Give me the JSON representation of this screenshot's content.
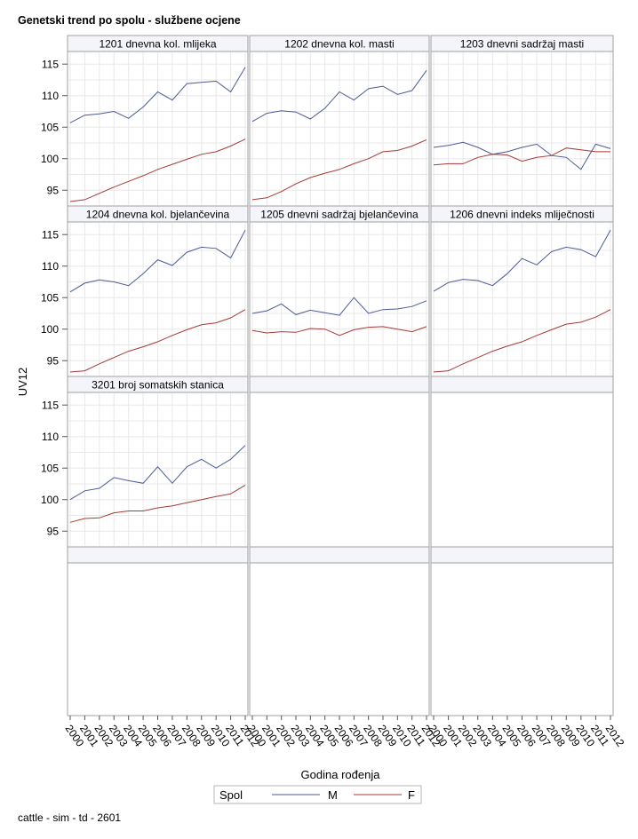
{
  "title": "Genetski trend po spolu - službene ocjene",
  "footnote": "cattle - sim - td - 2601",
  "colors": {
    "M": "#4a5a96",
    "F": "#a83a36",
    "grid": "#e8e8e8",
    "frame": "#a0a0a0",
    "header_bg": "#f4f5fa"
  },
  "chart_data": {
    "type": "line",
    "xlabel": "Godina rođenja",
    "ylabel": "UV12",
    "ylim": [
      92.5,
      117
    ],
    "yticks": [
      95,
      100,
      105,
      110,
      115
    ],
    "x": [
      "2000",
      "2001",
      "2002",
      "2003",
      "2004",
      "2005",
      "2006",
      "2007",
      "2008",
      "2009",
      "2010",
      "2011",
      "2012"
    ],
    "legend": {
      "title": "Spol",
      "position": "bottom-center",
      "entries": [
        "M",
        "F"
      ]
    },
    "grid": true,
    "panels": [
      {
        "title": "1201 dnevna kol. mlijeka",
        "series": [
          {
            "name": "M",
            "values": [
              105.7,
              106.9,
              107.1,
              107.5,
              106.4,
              108.2,
              110.6,
              109.3,
              111.9,
              112.1,
              112.3,
              110.6,
              114.5
            ]
          },
          {
            "name": "F",
            "values": [
              93.2,
              93.5,
              94.5,
              95.5,
              96.4,
              97.3,
              98.3,
              99.1,
              99.9,
              100.7,
              101.1,
              102.0,
              103.1
            ]
          }
        ]
      },
      {
        "title": "1202 dnevna kol. masti",
        "series": [
          {
            "name": "M",
            "values": [
              105.9,
              107.2,
              107.6,
              107.4,
              106.3,
              108.0,
              110.6,
              109.3,
              111.1,
              111.5,
              110.2,
              110.8,
              114.0
            ]
          },
          {
            "name": "F",
            "values": [
              93.5,
              93.8,
              94.8,
              96.0,
              97.0,
              97.7,
              98.3,
              99.2,
              100.0,
              101.1,
              101.3,
              102.0,
              103.0
            ]
          }
        ]
      },
      {
        "title": "1203 dnevni sadržaj masti",
        "series": [
          {
            "name": "M",
            "values": [
              101.8,
              102.1,
              102.6,
              101.8,
              100.7,
              101.1,
              101.8,
              102.3,
              100.5,
              100.2,
              98.3,
              102.3,
              101.6
            ]
          },
          {
            "name": "F",
            "values": [
              99.0,
              99.2,
              99.2,
              100.2,
              100.7,
              100.6,
              99.6,
              100.2,
              100.5,
              101.7,
              101.4,
              101.1,
              101.1
            ]
          }
        ]
      },
      {
        "title": "1204 dnevna kol. bjelančevina",
        "series": [
          {
            "name": "M",
            "values": [
              105.9,
              107.3,
              107.8,
              107.5,
              106.9,
              108.8,
              111.0,
              110.1,
              112.2,
              113.0,
              112.8,
              111.3,
              115.7
            ]
          },
          {
            "name": "F",
            "values": [
              93.2,
              93.4,
              94.5,
              95.5,
              96.5,
              97.2,
              98.0,
              99.0,
              99.9,
              100.7,
              101.0,
              101.8,
              103.1
            ]
          }
        ]
      },
      {
        "title": "1205 dnevni sadržaj bjelančevina",
        "series": [
          {
            "name": "M",
            "values": [
              102.5,
              102.9,
              104.0,
              102.3,
              103.0,
              102.6,
              102.2,
              105.0,
              102.5,
              103.1,
              103.2,
              103.6,
              104.5
            ]
          },
          {
            "name": "F",
            "values": [
              99.8,
              99.4,
              99.6,
              99.5,
              100.1,
              100.0,
              99.0,
              99.9,
              100.3,
              100.4,
              100.0,
              99.6,
              100.4
            ]
          }
        ]
      },
      {
        "title": "1206 dnevni indeks mliječnosti",
        "series": [
          {
            "name": "M",
            "values": [
              106.0,
              107.4,
              107.9,
              107.7,
              106.9,
              108.8,
              111.2,
              110.2,
              112.3,
              113.0,
              112.6,
              111.5,
              115.7
            ]
          },
          {
            "name": "F",
            "values": [
              93.2,
              93.4,
              94.5,
              95.5,
              96.5,
              97.3,
              98.0,
              99.0,
              99.9,
              100.8,
              101.1,
              101.9,
              103.1
            ]
          }
        ]
      },
      {
        "title": "3201 broj somatskih stanica",
        "series": [
          {
            "name": "M",
            "values": [
              100.0,
              101.4,
              101.8,
              103.5,
              103.0,
              102.6,
              105.2,
              102.6,
              105.2,
              106.4,
              105.0,
              106.4,
              108.6
            ]
          },
          {
            "name": "F",
            "values": [
              96.4,
              97.0,
              97.1,
              97.9,
              98.2,
              98.2,
              98.7,
              99.0,
              99.5,
              100.0,
              100.5,
              100.9,
              102.3
            ]
          }
        ]
      }
    ]
  }
}
